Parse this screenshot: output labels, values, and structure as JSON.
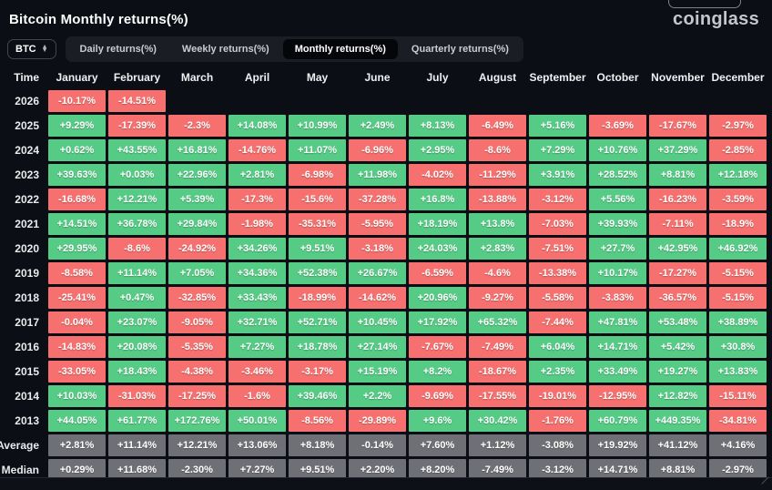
{
  "header": {
    "title": "Bitcoin Monthly returns(%)",
    "logo": "coinglass"
  },
  "toolbar": {
    "symbol_select": {
      "value": "BTC"
    },
    "tabs": [
      {
        "label": "Daily returns(%)",
        "active": false
      },
      {
        "label": "Weekly returns(%)",
        "active": false
      },
      {
        "label": "Monthly returns(%)",
        "active": true
      },
      {
        "label": "Quarterly returns(%)",
        "active": false
      }
    ]
  },
  "colors": {
    "background": "#0b0e14",
    "positive": "#55cb85",
    "negative": "#f5706e",
    "neutral": "#6e7075"
  },
  "table": {
    "columns": [
      "Time",
      "January",
      "February",
      "March",
      "April",
      "May",
      "June",
      "July",
      "August",
      "September",
      "October",
      "November",
      "December"
    ],
    "rows": [
      {
        "label": "2026",
        "type": "year",
        "values": [
          "-10.17%",
          "-14.51%",
          null,
          null,
          null,
          null,
          null,
          null,
          null,
          null,
          null,
          null
        ]
      },
      {
        "label": "2025",
        "type": "year",
        "values": [
          "+9.29%",
          "-17.39%",
          "-2.3%",
          "+14.08%",
          "+10.99%",
          "+2.49%",
          "+8.13%",
          "-6.49%",
          "+5.16%",
          "-3.69%",
          "-17.67%",
          "-2.97%"
        ]
      },
      {
        "label": "2024",
        "type": "year",
        "values": [
          "+0.62%",
          "+43.55%",
          "+16.81%",
          "-14.76%",
          "+11.07%",
          "-6.96%",
          "+2.95%",
          "-8.6%",
          "+7.29%",
          "+10.76%",
          "+37.29%",
          "-2.85%"
        ]
      },
      {
        "label": "2023",
        "type": "year",
        "values": [
          "+39.63%",
          "+0.03%",
          "+22.96%",
          "+2.81%",
          "-6.98%",
          "+11.98%",
          "-4.02%",
          "-11.29%",
          "+3.91%",
          "+28.52%",
          "+8.81%",
          "+12.18%"
        ]
      },
      {
        "label": "2022",
        "type": "year",
        "values": [
          "-16.68%",
          "+12.21%",
          "+5.39%",
          "-17.3%",
          "-15.6%",
          "-37.28%",
          "+16.8%",
          "-13.88%",
          "-3.12%",
          "+5.56%",
          "-16.23%",
          "-3.59%"
        ]
      },
      {
        "label": "2021",
        "type": "year",
        "values": [
          "+14.51%",
          "+36.78%",
          "+29.84%",
          "-1.98%",
          "-35.31%",
          "-5.95%",
          "+18.19%",
          "+13.8%",
          "-7.03%",
          "+39.93%",
          "-7.11%",
          "-18.9%"
        ]
      },
      {
        "label": "2020",
        "type": "year",
        "values": [
          "+29.95%",
          "-8.6%",
          "-24.92%",
          "+34.26%",
          "+9.51%",
          "-3.18%",
          "+24.03%",
          "+2.83%",
          "-7.51%",
          "+27.7%",
          "+42.95%",
          "+46.92%"
        ]
      },
      {
        "label": "2019",
        "type": "year",
        "values": [
          "-8.58%",
          "+11.14%",
          "+7.05%",
          "+34.36%",
          "+52.38%",
          "+26.67%",
          "-6.59%",
          "-4.6%",
          "-13.38%",
          "+10.17%",
          "-17.27%",
          "-5.15%"
        ]
      },
      {
        "label": "2018",
        "type": "year",
        "values": [
          "-25.41%",
          "+0.47%",
          "-32.85%",
          "+33.43%",
          "-18.99%",
          "-14.62%",
          "+20.96%",
          "-9.27%",
          "-5.58%",
          "-3.83%",
          "-36.57%",
          "-5.15%"
        ]
      },
      {
        "label": "2017",
        "type": "year",
        "values": [
          "-0.04%",
          "+23.07%",
          "-9.05%",
          "+32.71%",
          "+52.71%",
          "+10.45%",
          "+17.92%",
          "+65.32%",
          "-7.44%",
          "+47.81%",
          "+53.48%",
          "+38.89%"
        ]
      },
      {
        "label": "2016",
        "type": "year",
        "values": [
          "-14.83%",
          "+20.08%",
          "-5.35%",
          "+7.27%",
          "+18.78%",
          "+27.14%",
          "-7.67%",
          "-7.49%",
          "+6.04%",
          "+14.71%",
          "+5.42%",
          "+30.8%"
        ]
      },
      {
        "label": "2015",
        "type": "year",
        "values": [
          "-33.05%",
          "+18.43%",
          "-4.38%",
          "-3.46%",
          "-3.17%",
          "+15.19%",
          "+8.2%",
          "-18.67%",
          "+2.35%",
          "+33.49%",
          "+19.27%",
          "+13.83%"
        ]
      },
      {
        "label": "2014",
        "type": "year",
        "values": [
          "+10.03%",
          "-31.03%",
          "-17.25%",
          "-1.6%",
          "+39.46%",
          "+2.2%",
          "-9.69%",
          "-17.55%",
          "-19.01%",
          "-12.95%",
          "+12.82%",
          "-15.11%"
        ]
      },
      {
        "label": "2013",
        "type": "year",
        "values": [
          "+44.05%",
          "+61.77%",
          "+172.76%",
          "+50.01%",
          "-8.56%",
          "-29.89%",
          "+9.6%",
          "+30.42%",
          "-1.76%",
          "+60.79%",
          "+449.35%",
          "-34.81%"
        ]
      },
      {
        "label": "Average",
        "type": "summary",
        "values": [
          "+2.81%",
          "+11.14%",
          "+12.21%",
          "+13.06%",
          "+8.18%",
          "-0.14%",
          "+7.60%",
          "+1.12%",
          "-3.08%",
          "+19.92%",
          "+41.12%",
          "+4.16%"
        ]
      },
      {
        "label": "Median",
        "type": "summary",
        "values": [
          "+0.29%",
          "+11.68%",
          "-2.30%",
          "+7.27%",
          "+9.51%",
          "+2.20%",
          "+8.20%",
          "-7.49%",
          "-3.12%",
          "+14.71%",
          "+8.81%",
          "-2.97%"
        ]
      }
    ]
  }
}
